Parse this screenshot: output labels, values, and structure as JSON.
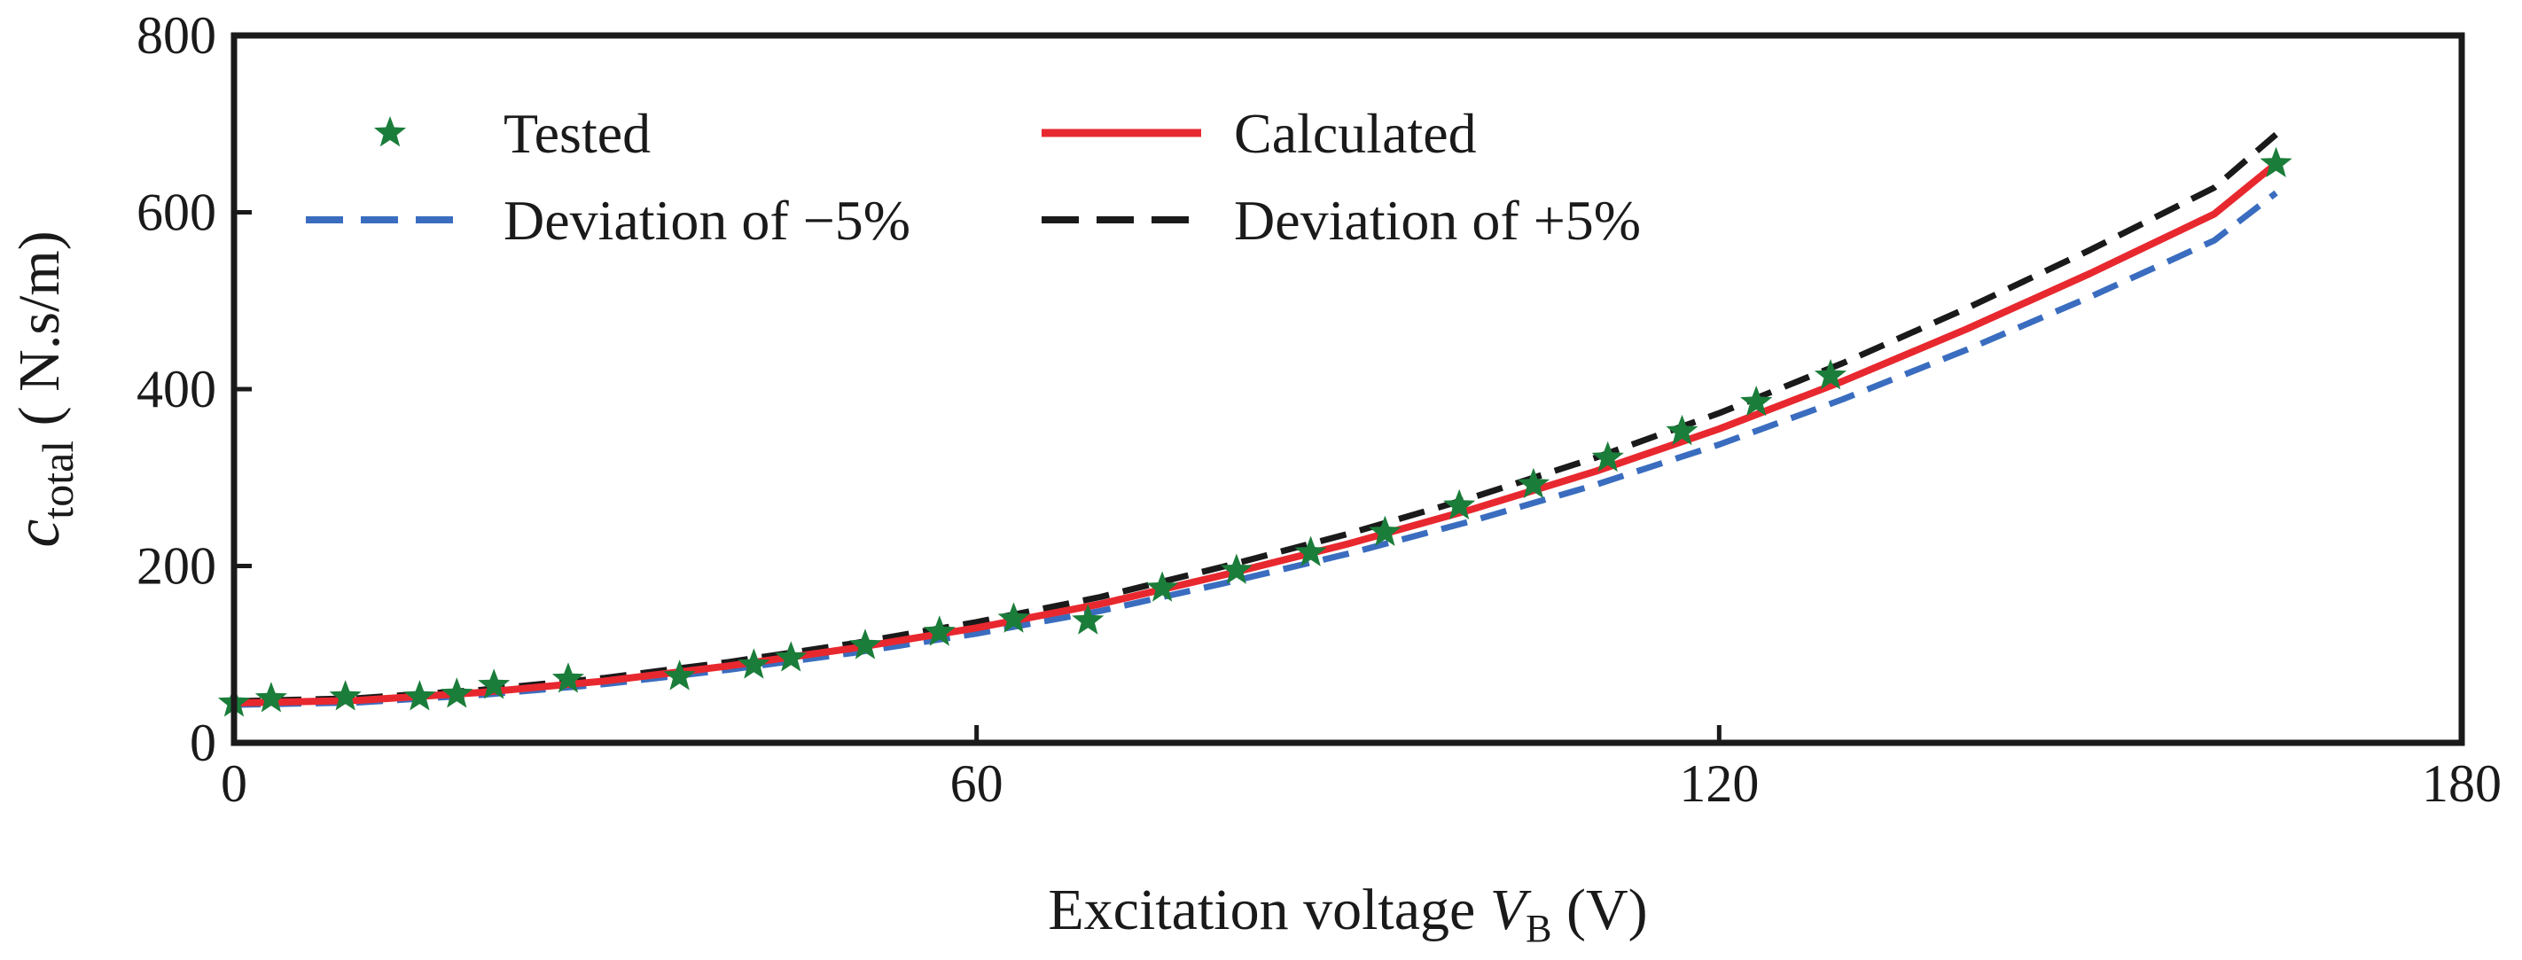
{
  "chart_data": {
    "type": "line",
    "title": "",
    "xlabel": {
      "prefix": "Excitation voltage ",
      "symbol": "V",
      "subscript": "B",
      "suffix": " (V)"
    },
    "ylabel": {
      "symbol": "c",
      "subscript": "total",
      "suffix": " ( N.s/m)"
    },
    "xlim": [
      0,
      180
    ],
    "ylim": [
      0,
      800
    ],
    "xticks": [
      0,
      60,
      120,
      180
    ],
    "yticks": [
      0,
      200,
      400,
      600,
      800
    ],
    "legend_position": "top-left",
    "series": [
      {
        "name": "Tested",
        "kind": "marker",
        "marker": "star",
        "color": "#1b7d3a",
        "x": [
          0,
          3,
          9,
          15,
          18,
          21,
          27,
          36,
          42,
          45,
          51,
          57,
          63,
          69,
          75,
          81,
          87,
          93,
          99,
          105,
          111,
          117,
          123,
          129,
          165
        ],
        "y": [
          45,
          50,
          52,
          52,
          55,
          65,
          72,
          75,
          88,
          96,
          110,
          125,
          140,
          138,
          175,
          195,
          215,
          238,
          268,
          292,
          322,
          352,
          385,
          415,
          655
        ]
      },
      {
        "name": "Calculated",
        "kind": "line",
        "dash": "solid",
        "color": "#e8282f",
        "x": [
          0,
          10,
          20,
          30,
          40,
          50,
          60,
          70,
          80,
          90,
          100,
          110,
          120,
          130,
          140,
          150,
          160,
          165
        ],
        "y": [
          45,
          48,
          57,
          70,
          87,
          107,
          130,
          157,
          190,
          225,
          264,
          307,
          355,
          409,
          468,
          531,
          598,
          655
        ]
      },
      {
        "name": "Deviation of −5%",
        "kind": "line",
        "dash": "dashed",
        "color": "#3a6dbf",
        "x": [
          0,
          10,
          20,
          30,
          40,
          50,
          60,
          70,
          80,
          90,
          100,
          110,
          120,
          130,
          140,
          150,
          160,
          165
        ],
        "y": [
          43,
          45.6,
          54.2,
          66.5,
          82.7,
          101.7,
          123.5,
          149.2,
          180.5,
          213.8,
          250.8,
          291.7,
          337.3,
          388.6,
          444.6,
          504.5,
          568.1,
          622
        ]
      },
      {
        "name": "Deviation of +5%",
        "kind": "line",
        "dash": "dashed",
        "color": "#1a1a1a",
        "x": [
          0,
          10,
          20,
          30,
          40,
          50,
          60,
          70,
          80,
          90,
          100,
          110,
          120,
          130,
          140,
          150,
          160,
          165
        ],
        "y": [
          47,
          50.4,
          59.9,
          73.5,
          91.4,
          112.4,
          136.5,
          164.9,
          199.5,
          236.3,
          277.2,
          322.4,
          372.8,
          429.5,
          491.4,
          557.6,
          627.9,
          688
        ]
      }
    ]
  }
}
